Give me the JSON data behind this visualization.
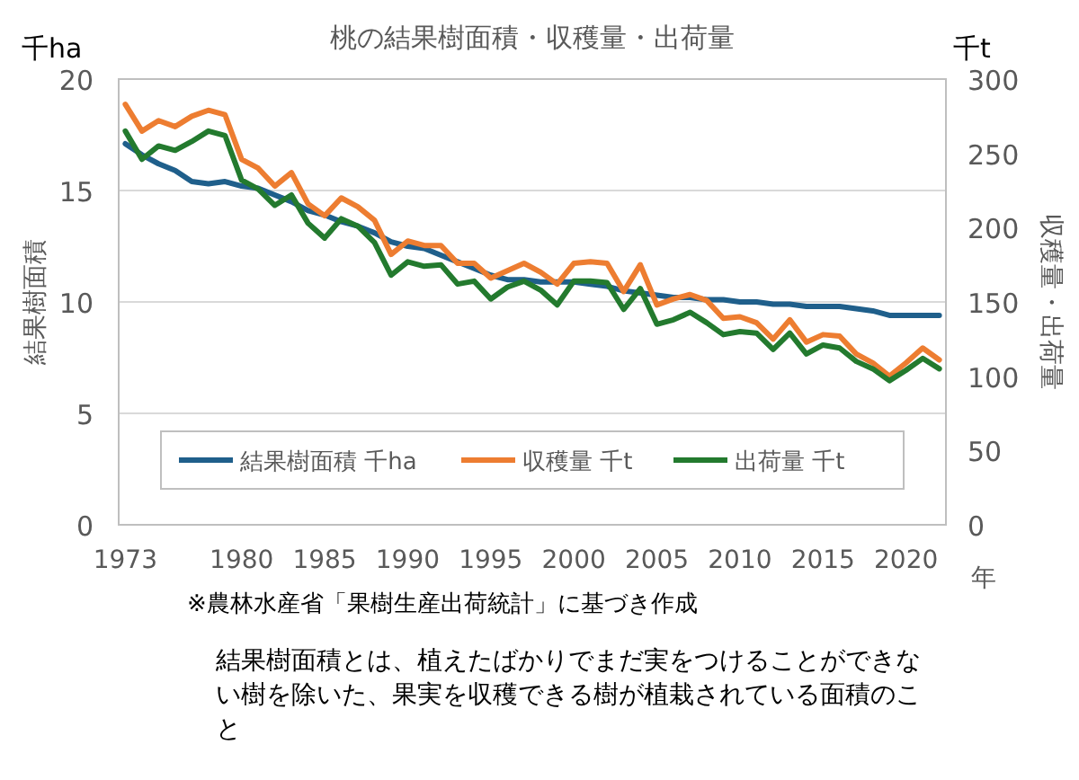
{
  "chart_data": {
    "type": "line",
    "title": "桃の結果樹面積・収穫量・出荷量",
    "ylabel": "結果樹面積",
    "y2label": "収穫量・出荷量",
    "x": [
      1973,
      1974,
      1975,
      1976,
      1977,
      1978,
      1979,
      1980,
      1981,
      1982,
      1983,
      1984,
      1985,
      1986,
      1987,
      1988,
      1989,
      1990,
      1991,
      1992,
      1993,
      1994,
      1995,
      1996,
      1997,
      1998,
      1999,
      2000,
      2001,
      2002,
      2003,
      2004,
      2005,
      2006,
      2007,
      2008,
      2009,
      2010,
      2011,
      2012,
      2013,
      2014,
      2015,
      2016,
      2017,
      2018,
      2019,
      2020,
      2021,
      2022
    ],
    "series": [
      {
        "name": "結果樹面積 千ha",
        "color": "#1f5f8b",
        "values": [
          17.1,
          16.6,
          16.2,
          15.9,
          15.4,
          15.3,
          15.4,
          15.2,
          15.1,
          14.8,
          14.5,
          14.1,
          13.9,
          13.6,
          13.4,
          13.1,
          12.7,
          12.5,
          12.4,
          12.1,
          11.8,
          11.5,
          11.2,
          11.0,
          11.0,
          10.9,
          10.9,
          10.9,
          10.8,
          10.7,
          10.5,
          10.4,
          10.3,
          10.2,
          10.2,
          10.1,
          10.1,
          10.0,
          10.0,
          9.9,
          9.9,
          9.8,
          9.8,
          9.8,
          9.7,
          9.6,
          9.4,
          9.4,
          9.4,
          9.4
        ]
      },
      {
        "name": "収穫量 千t",
        "color": "#ed7d31",
        "axis": "y2",
        "values": [
          283,
          265,
          272,
          268,
          275,
          279,
          276,
          246,
          240,
          228,
          237,
          216,
          208,
          220,
          214,
          205,
          182,
          191,
          188,
          188,
          176,
          176,
          166,
          171,
          176,
          170,
          162,
          176,
          177,
          176,
          157,
          175,
          148,
          152,
          155,
          151,
          139,
          140,
          136,
          125,
          138,
          123,
          128,
          127,
          115,
          109,
          100,
          109,
          119,
          111
        ]
      },
      {
        "name": "出荷量 千t",
        "color": "#237a2e",
        "axis": "y2",
        "values": [
          265,
          246,
          255,
          252,
          258,
          265,
          262,
          232,
          226,
          215,
          222,
          203,
          193,
          206,
          201,
          190,
          168,
          177,
          174,
          175,
          162,
          164,
          152,
          160,
          164,
          158,
          148,
          164,
          164,
          163,
          145,
          159,
          135,
          138,
          143,
          136,
          128,
          130,
          129,
          118,
          129,
          115,
          121,
          119,
          110,
          105,
          97,
          104,
          112,
          105
        ]
      }
    ],
    "xlim": [
      1972.6,
      2022.4
    ],
    "xticks": [
      1973,
      1980,
      1985,
      1990,
      1995,
      2000,
      2005,
      2010,
      2015,
      2020
    ],
    "ylim": [
      0,
      20
    ],
    "yticks": [
      0,
      5,
      10,
      15,
      20
    ],
    "y2lim": [
      0,
      300
    ],
    "y2ticks": [
      0,
      50,
      100,
      150,
      200,
      250,
      300
    ],
    "grid": "y",
    "legend": "bottom",
    "line_style": "solid",
    "marker": "none",
    "annotations": [
      "千ha",
      "千t",
      "年",
      "※農林水産省「果樹生産出荷統計」に基づき作成",
      "結果樹面積とは、植えたばかりでまだ実をつけることができない樹を除いた、果実を収穫できる樹が植栽されている面積のこと"
    ]
  }
}
